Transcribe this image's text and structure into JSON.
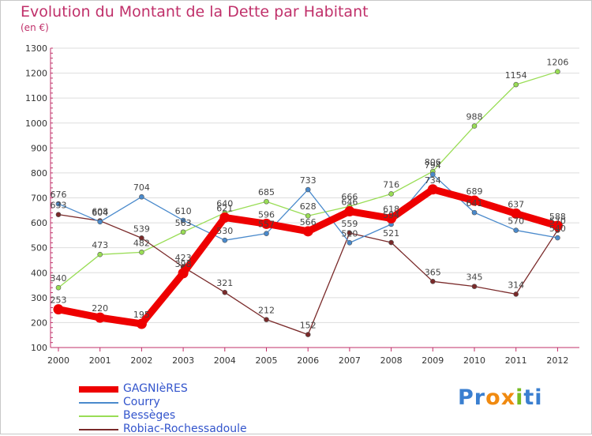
{
  "chart_data": {
    "type": "line",
    "title": "Evolution du Montant de la Dette par Habitant",
    "subtitle": "(en €)",
    "x": [
      "2000",
      "2001",
      "2002",
      "2003",
      "2004",
      "2005",
      "2006",
      "2007",
      "2008",
      "2009",
      "2010",
      "2011",
      "2012"
    ],
    "ylim": [
      100,
      1300
    ],
    "yticks": [
      100,
      200,
      300,
      400,
      500,
      600,
      700,
      800,
      900,
      1000,
      1100,
      1200,
      1300
    ],
    "grid": true,
    "legend_placement": "bottom-left",
    "series": [
      {
        "name": "Bessèges",
        "color": "#99dd55",
        "values": [
          340,
          473,
          482,
          563,
          640,
          685,
          628,
          666,
          716,
          806,
          988,
          1154,
          1206
        ]
      },
      {
        "name": "Robiac-Rochessadoule",
        "color": "#7a2a2a",
        "values": [
          633,
          608,
          539,
          423,
          321,
          212,
          152,
          559,
          521,
          365,
          345,
          314,
          570
        ]
      },
      {
        "name": "Courry",
        "color": "#4a8acc",
        "values": [
          676,
          604,
          704,
          610,
          530,
          557,
          733,
          520,
          594,
          794,
          641,
          570,
          540
        ]
      },
      {
        "name": "GAGNIèRES",
        "color": "#ee0000",
        "values": [
          253,
          220,
          195,
          398,
          621,
          596,
          566,
          646,
          618,
          734,
          689,
          637,
          588
        ]
      }
    ],
    "legend_order": [
      "GAGNIèRES",
      "Courry",
      "Bessèges",
      "Robiac-Rochessadoule"
    ]
  },
  "logo": {
    "text": "Proxiti",
    "letters": [
      "P",
      "r",
      "o",
      "x",
      "i",
      "t",
      "i"
    ],
    "colors": [
      "#3a7fd0",
      "#3a7fd0",
      "#f08a10",
      "#f08a10",
      "#77bb22",
      "#3a7fd0",
      "#3a7fd0"
    ]
  }
}
